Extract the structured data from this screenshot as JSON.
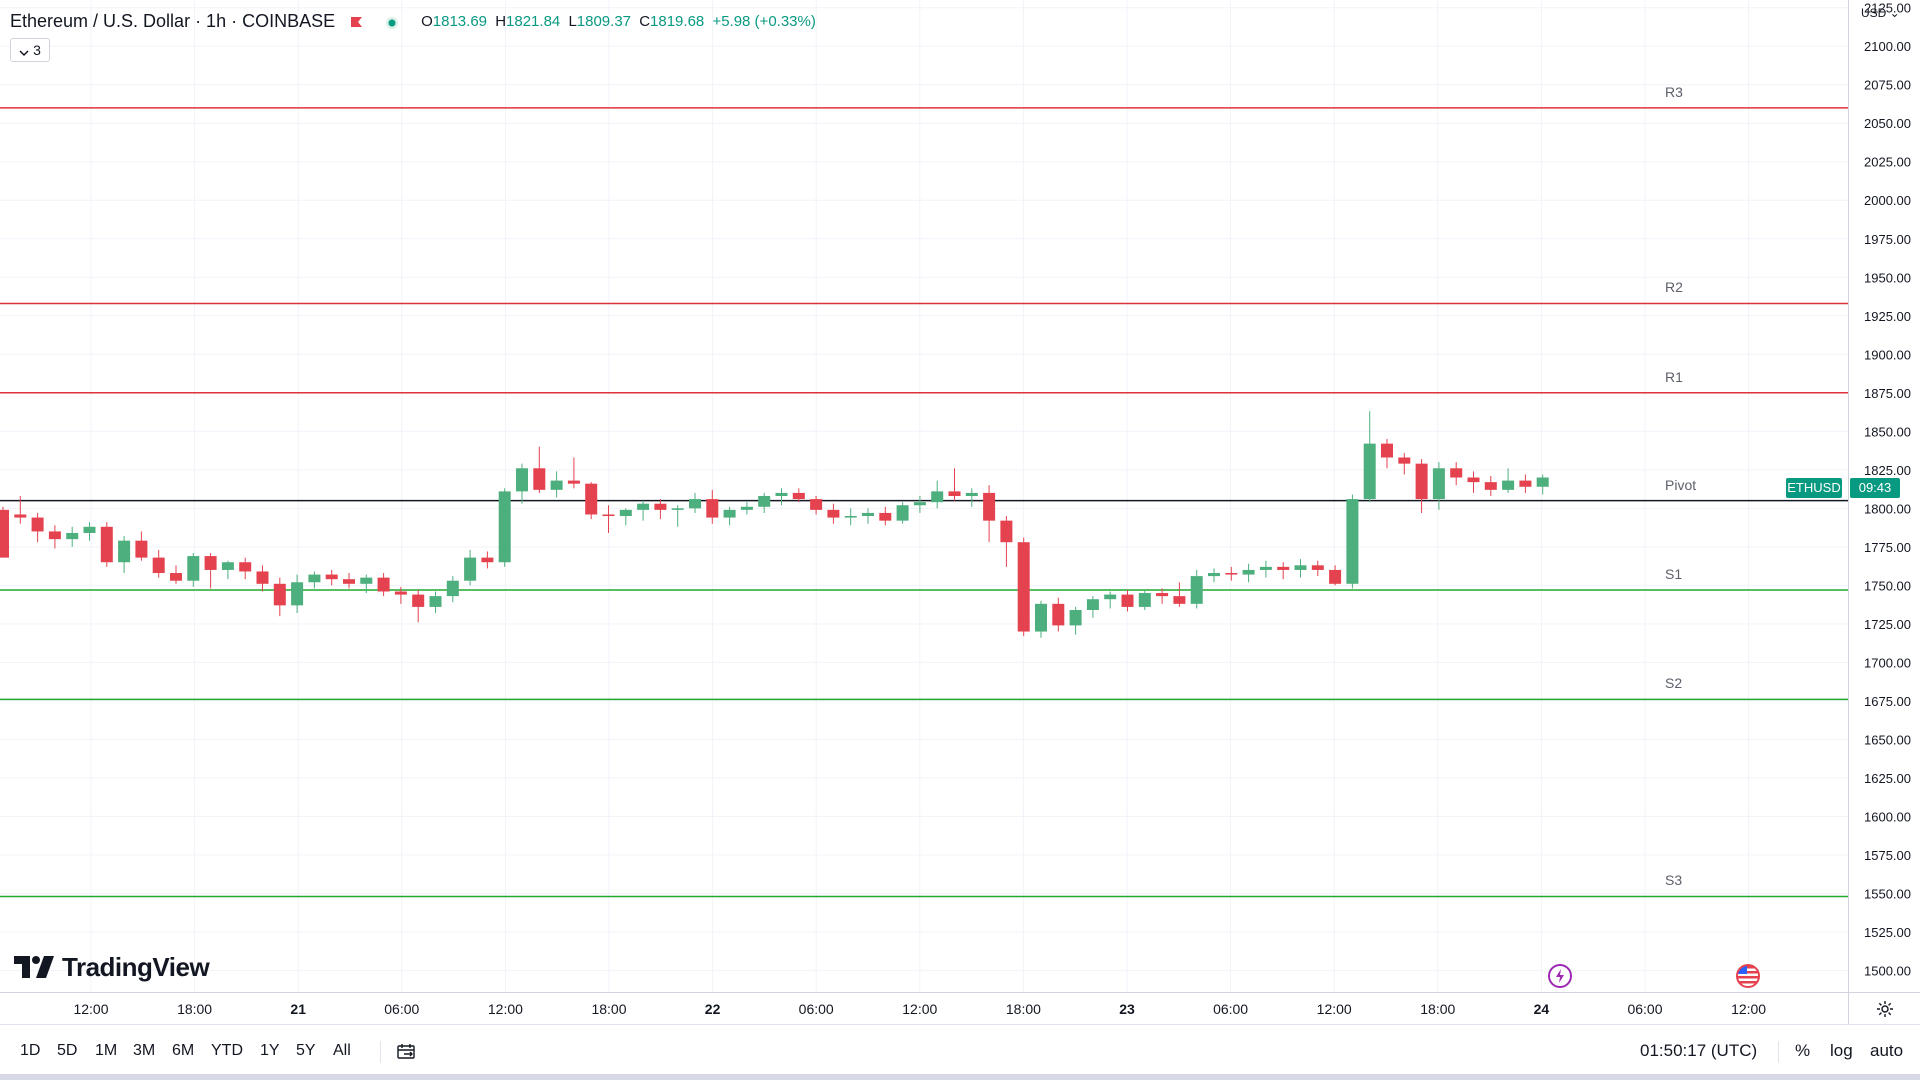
{
  "legend": {
    "symbol_title": "Ethereum / U.S. Dollar · 1h · COINBASE",
    "open_key": "O",
    "open": "1813.69",
    "high_key": "H",
    "high": "1821.84",
    "low_key": "L",
    "low": "1809.37",
    "close_key": "C",
    "close": "1819.68",
    "change": "+5.98 (+0.33%)",
    "indicator_count": "3",
    "icons": [
      "flag-icon",
      "status-dot-icon",
      "chevron-down-icon"
    ]
  },
  "currency": "USD",
  "price_axis_labels": [
    "2125.00",
    "2100.00",
    "2075.00",
    "2050.00",
    "2025.00",
    "2000.00",
    "1975.00",
    "1950.00",
    "1925.00",
    "1900.00",
    "1875.00",
    "1850.00",
    "1825.00",
    "1800.00",
    "1775.00",
    "1750.00",
    "1725.00",
    "1700.00",
    "1675.00",
    "1650.00",
    "1625.00",
    "1600.00",
    "1575.00",
    "1550.00",
    "1525.00",
    "1500.00"
  ],
  "time_axis_labels": [
    "12:00",
    "18:00",
    "21",
    "06:00",
    "12:00",
    "18:00",
    "22",
    "06:00",
    "12:00",
    "18:00",
    "23",
    "06:00",
    "12:00",
    "18:00",
    "24",
    "06:00",
    "12:00"
  ],
  "pivot_levels": [
    {
      "label": "R3",
      "price": 2060,
      "color": "#e0313b"
    },
    {
      "label": "R2",
      "price": 1933,
      "color": "#e0313b"
    },
    {
      "label": "R1",
      "price": 1875,
      "color": "#e0313b"
    },
    {
      "label": "Pivot",
      "price": 1805,
      "color": "#131722"
    },
    {
      "label": "S1",
      "price": 1747,
      "color": "#22a82e"
    },
    {
      "label": "S2",
      "price": 1676,
      "color": "#22a82e"
    },
    {
      "label": "S3",
      "price": 1548,
      "color": "#22a82e"
    }
  ],
  "price_tag": {
    "symbol": "ETHUSD",
    "countdown": "09:43",
    "color": "#089981"
  },
  "colors": {
    "up": "#4caf7d",
    "down": "#e5424f",
    "grid": "#f0f3fa"
  },
  "chart_data": {
    "type": "candlestick",
    "title": "Ethereum / U.S. Dollar · 1h · COINBASE",
    "ylim": [
      1486,
      2130
    ],
    "candles": [
      [
        1799,
        1801,
        1768,
        1768
      ],
      [
        1796,
        1808,
        1790,
        1794
      ],
      [
        1794,
        1797,
        1778,
        1785
      ],
      [
        1785,
        1789,
        1774,
        1780
      ],
      [
        1780,
        1788,
        1775,
        1784
      ],
      [
        1784,
        1791,
        1779,
        1788
      ],
      [
        1788,
        1791,
        1762,
        1765
      ],
      [
        1765,
        1782,
        1758,
        1779
      ],
      [
        1779,
        1785,
        1766,
        1768
      ],
      [
        1768,
        1773,
        1755,
        1758
      ],
      [
        1758,
        1763,
        1751,
        1753
      ],
      [
        1753,
        1771,
        1749,
        1769
      ],
      [
        1769,
        1771,
        1748,
        1760
      ],
      [
        1760,
        1766,
        1754,
        1765
      ],
      [
        1765,
        1768,
        1754,
        1759
      ],
      [
        1759,
        1763,
        1746,
        1751
      ],
      [
        1751,
        1755,
        1730,
        1737
      ],
      [
        1737,
        1757,
        1732,
        1752
      ],
      [
        1752,
        1759,
        1748,
        1757
      ],
      [
        1757,
        1760,
        1750,
        1754
      ],
      [
        1754,
        1758,
        1748,
        1751
      ],
      [
        1751,
        1757,
        1745,
        1755
      ],
      [
        1755,
        1758,
        1743,
        1746
      ],
      [
        1746,
        1749,
        1738,
        1744
      ],
      [
        1744,
        1747,
        1726,
        1736
      ],
      [
        1736,
        1746,
        1732,
        1743
      ],
      [
        1743,
        1756,
        1739,
        1753
      ],
      [
        1753,
        1773,
        1750,
        1768
      ],
      [
        1768,
        1772,
        1761,
        1765
      ],
      [
        1765,
        1813,
        1762,
        1811
      ],
      [
        1811,
        1829,
        1803,
        1826
      ],
      [
        1826,
        1840,
        1810,
        1812
      ],
      [
        1812,
        1824,
        1807,
        1818
      ],
      [
        1818,
        1833,
        1813,
        1816
      ],
      [
        1816,
        1817,
        1793,
        1796
      ],
      [
        1796,
        1802,
        1784,
        1795
      ],
      [
        1795,
        1800,
        1789,
        1799
      ],
      [
        1799,
        1805,
        1792,
        1803
      ],
      [
        1803,
        1806,
        1793,
        1799
      ],
      [
        1799,
        1802,
        1788,
        1800
      ],
      [
        1800,
        1810,
        1797,
        1806
      ],
      [
        1806,
        1812,
        1790,
        1794
      ],
      [
        1794,
        1801,
        1789,
        1799
      ],
      [
        1799,
        1804,
        1796,
        1801
      ],
      [
        1801,
        1810,
        1797,
        1808
      ],
      [
        1808,
        1813,
        1802,
        1810
      ],
      [
        1810,
        1813,
        1804,
        1806
      ],
      [
        1806,
        1808,
        1796,
        1799
      ],
      [
        1799,
        1803,
        1790,
        1794
      ],
      [
        1794,
        1800,
        1789,
        1795
      ],
      [
        1795,
        1800,
        1790,
        1797
      ],
      [
        1797,
        1801,
        1789,
        1792
      ],
      [
        1792,
        1804,
        1790,
        1802
      ],
      [
        1802,
        1808,
        1797,
        1804
      ],
      [
        1804,
        1818,
        1800,
        1811
      ],
      [
        1811,
        1826,
        1805,
        1808
      ],
      [
        1808,
        1813,
        1801,
        1810
      ],
      [
        1810,
        1815,
        1778,
        1792
      ],
      [
        1792,
        1795,
        1762,
        1778
      ],
      [
        1778,
        1781,
        1717,
        1720
      ],
      [
        1720,
        1740,
        1716,
        1738
      ],
      [
        1738,
        1742,
        1720,
        1724
      ],
      [
        1724,
        1736,
        1718,
        1734
      ],
      [
        1734,
        1743,
        1729,
        1741
      ],
      [
        1741,
        1746,
        1735,
        1744
      ],
      [
        1744,
        1747,
        1733,
        1736
      ],
      [
        1736,
        1747,
        1734,
        1745
      ],
      [
        1745,
        1748,
        1738,
        1743
      ],
      [
        1743,
        1752,
        1736,
        1738
      ],
      [
        1738,
        1760,
        1735,
        1756
      ],
      [
        1756,
        1761,
        1752,
        1758
      ],
      [
        1758,
        1762,
        1753,
        1757
      ],
      [
        1757,
        1764,
        1752,
        1760
      ],
      [
        1760,
        1766,
        1755,
        1762
      ],
      [
        1762,
        1765,
        1754,
        1760
      ],
      [
        1760,
        1767,
        1755,
        1763
      ],
      [
        1763,
        1766,
        1756,
        1760
      ],
      [
        1760,
        1763,
        1750,
        1751
      ],
      [
        1751,
        1809,
        1748,
        1806
      ],
      [
        1806,
        1863,
        1804,
        1842
      ],
      [
        1842,
        1845,
        1826,
        1833
      ],
      [
        1833,
        1836,
        1822,
        1829
      ],
      [
        1829,
        1832,
        1797,
        1806
      ],
      [
        1806,
        1830,
        1799,
        1826
      ],
      [
        1826,
        1830,
        1815,
        1820
      ],
      [
        1820,
        1824,
        1810,
        1817
      ],
      [
        1817,
        1821,
        1808,
        1812
      ],
      [
        1812,
        1826,
        1810,
        1818
      ],
      [
        1818,
        1822,
        1810,
        1814
      ],
      [
        1814,
        1822,
        1809,
        1820
      ]
    ]
  },
  "range_buttons": [
    "1D",
    "5D",
    "1M",
    "3M",
    "6M",
    "YTD",
    "1Y",
    "5Y",
    "All"
  ],
  "status": {
    "time": "01:50:17 (UTC)",
    "percent": "%",
    "log": "log",
    "auto": "auto"
  },
  "branding": {
    "logo_text": "TradingView"
  }
}
